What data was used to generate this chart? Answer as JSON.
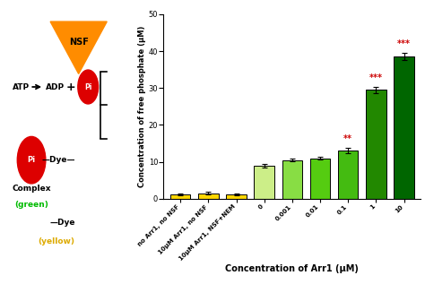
{
  "categories": [
    "no Arr1, no NSF",
    "10μM Arr1, no NSF",
    "10μM Arr1, NSF+NEM",
    "0",
    "0.001",
    "0.01",
    "0.1",
    "1",
    "10"
  ],
  "values": [
    1.3,
    1.5,
    1.1,
    9.0,
    10.5,
    11.0,
    13.0,
    29.5,
    38.5
  ],
  "errors": [
    0.25,
    0.35,
    0.25,
    0.5,
    0.4,
    0.4,
    0.7,
    0.9,
    1.0
  ],
  "bar_colors": [
    "#FFD700",
    "#FFD700",
    "#FFD700",
    "#CCEE88",
    "#88DD44",
    "#55CC11",
    "#44BB11",
    "#228800",
    "#006600"
  ],
  "significance": [
    "",
    "",
    "",
    "",
    "",
    "",
    "**",
    "***",
    "***"
  ],
  "ylabel": "Concentration of free phosphate (μM)",
  "xlabel": "Concentration of Arr1 (μM)",
  "ylim": [
    0,
    50
  ],
  "yticks": [
    0,
    10,
    20,
    30,
    40,
    50
  ],
  "sig_color": "#CC0000",
  "bar_edge_color": "#000000",
  "background_color": "#ffffff",
  "nsf_color": "#FF8C00",
  "pi_color": "#DD0000",
  "green_text": "#00BB00",
  "yellow_text": "#DDAA00"
}
